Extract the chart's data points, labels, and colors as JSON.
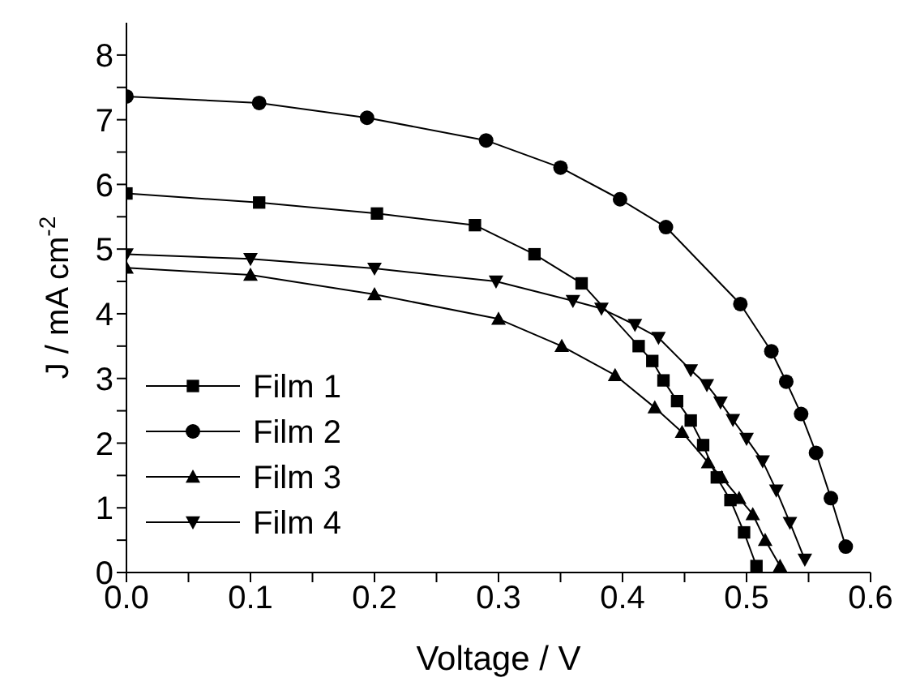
{
  "chart_data": {
    "type": "line",
    "xlabel": "Voltage / V",
    "ylabel": "J / mA cm$^{-2}$",
    "xlim": [
      0,
      0.6
    ],
    "ylim": [
      0,
      8.5
    ],
    "xticks": [
      {
        "value": 0,
        "label": "0.0"
      },
      {
        "value": 0.05,
        "label": null
      },
      0.1,
      {
        "value": 0.15,
        "label": null
      },
      0.2,
      {
        "value": 0.25,
        "label": null
      },
      0.3,
      {
        "value": 0.35,
        "label": null
      },
      0.4,
      {
        "value": 0.45,
        "label": null
      },
      0.5,
      {
        "value": 0.55,
        "label": null
      },
      0.6
    ],
    "yticks": [
      0,
      {
        "value": 0.5,
        "label": null
      },
      1,
      {
        "value": 1.5,
        "label": null
      },
      2,
      {
        "value": 2.5,
        "label": null
      },
      3,
      {
        "value": 3.5,
        "label": null
      },
      4,
      {
        "value": 4.5,
        "label": null
      },
      5,
      {
        "value": 5.5,
        "label": null
      },
      6,
      {
        "value": 6.5,
        "label": null
      },
      7,
      {
        "value": 7.5,
        "label": null
      },
      8
    ],
    "grid": false,
    "legend": "bottom left",
    "line_style": "solid",
    "series": [
      {
        "name": "Film 1",
        "color": "#000000",
        "marker": "square",
        "x": [
          0,
          0.107,
          0.202,
          0.281,
          0.329,
          0.367,
          0.413,
          0.424,
          0.433,
          0.444,
          0.455,
          0.465,
          0.476,
          0.487,
          0.498,
          0.508
        ],
        "values": [
          5.86,
          5.72,
          5.55,
          5.37,
          4.92,
          4.47,
          3.5,
          3.27,
          2.97,
          2.65,
          2.35,
          1.97,
          1.47,
          1.12,
          0.62,
          0.1
        ]
      },
      {
        "name": "Film 2",
        "color": "#000000",
        "marker": "circle",
        "x": [
          0,
          0.107,
          0.194,
          0.29,
          0.35,
          0.398,
          0.435,
          0.495,
          0.52,
          0.532,
          0.544,
          0.556,
          0.568,
          0.58
        ],
        "values": [
          7.36,
          7.26,
          7.03,
          6.68,
          6.26,
          5.77,
          5.34,
          4.15,
          3.42,
          2.95,
          2.45,
          1.85,
          1.15,
          0.4
        ]
      },
      {
        "name": "Film 3",
        "color": "#000000",
        "marker": "triangle",
        "x": [
          0,
          0.1,
          0.2,
          0.3,
          0.351,
          0.394,
          0.426,
          0.448,
          0.469,
          0.48,
          0.494,
          0.505,
          0.515,
          0.527
        ],
        "values": [
          4.71,
          4.6,
          4.3,
          3.92,
          3.5,
          3.05,
          2.55,
          2.17,
          1.7,
          1.47,
          1.15,
          0.9,
          0.5,
          0.1
        ]
      },
      {
        "name": "Film 4",
        "color": "#000000",
        "marker": "triangle-down",
        "x": [
          0,
          0.1,
          0.2,
          0.298,
          0.36,
          0.383,
          0.41,
          0.429,
          0.455,
          0.468,
          0.479,
          0.489,
          0.5,
          0.513,
          0.524,
          0.535,
          0.547
        ],
        "values": [
          4.92,
          4.85,
          4.7,
          4.5,
          4.2,
          4.08,
          3.83,
          3.63,
          3.13,
          2.9,
          2.63,
          2.36,
          2.07,
          1.72,
          1.27,
          0.77,
          0.2
        ]
      }
    ]
  }
}
